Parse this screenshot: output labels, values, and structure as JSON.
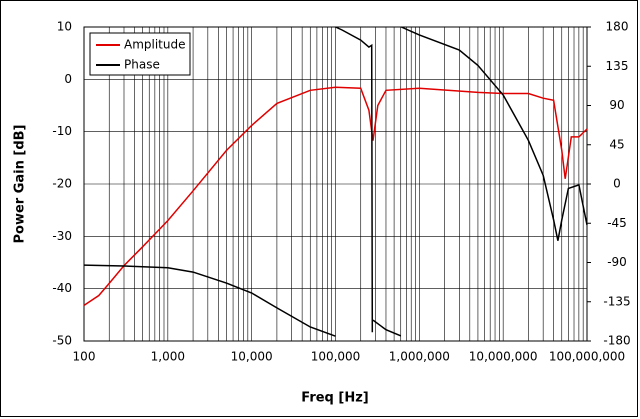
{
  "chart_data": {
    "type": "line",
    "xlabel": "Freq [Hz]",
    "ylabel": "Power Gain [dB]",
    "xscale": "log",
    "grid": true,
    "minor_grid": true,
    "legend": "upper left",
    "xlim": [
      100,
      100000000
    ],
    "xticks": [
      100,
      {
        "value": 1000,
        "label": "1,000"
      },
      {
        "value": 10000,
        "label": "10,000"
      },
      {
        "value": 100000,
        "label": "100,000"
      },
      {
        "value": 1000000,
        "label": "1,000,000"
      },
      {
        "value": 10000000,
        "label": "10,000,000"
      },
      {
        "value": 100000000,
        "label": "100,000,000"
      }
    ],
    "ylim": [
      -50,
      10
    ],
    "yticks": [
      -50,
      -40,
      -30,
      -20,
      -10,
      0,
      10
    ],
    "y2lim": [
      -180,
      180
    ],
    "y2ticks": [
      -180,
      -135,
      -90,
      -45,
      0,
      45,
      90,
      135,
      180
    ],
    "series": [
      {
        "name": "Amplitude",
        "color": "#e00000",
        "x": [
          100,
          150,
          200,
          300,
          500,
          1000,
          2000,
          5000,
          10000,
          20000,
          50000,
          100000,
          200000,
          250000,
          280000,
          320000,
          400000,
          1000000,
          5000000,
          10000000,
          20000000,
          30000000,
          40000000,
          50000000,
          55000000,
          65000000,
          80000000,
          100000000
        ],
        "values": [
          -43.2,
          -41.3,
          -39,
          -35.6,
          -32,
          -27,
          -21.3,
          -13.6,
          -8.8,
          -4.6,
          -2.1,
          -1.5,
          -1.7,
          -5.9,
          -11.7,
          -5,
          -2.1,
          -1.7,
          -2.5,
          -2.7,
          -2.7,
          -3.6,
          -4,
          -13.6,
          -19,
          -11,
          -11,
          -9.5
        ]
      },
      {
        "name": "Phase",
        "color": "#000000",
        "axis": "y2",
        "x": [
          100,
          300,
          1000,
          2000,
          5000,
          10000,
          20000,
          50000,
          100000,
          100001,
          100002,
          120000,
          200000,
          250000,
          270000,
          275000,
          275001,
          280000,
          400000,
          600000,
          600001,
          610000,
          1000000,
          3000000,
          5000000,
          10000000,
          20000000,
          30000000,
          40000000,
          45000000,
          50000000,
          60000000,
          80000000,
          100000000
        ],
        "values": [
          -93,
          -94,
          -96,
          -101,
          -113.6,
          -125,
          -142,
          -164,
          -174.5,
          null,
          180,
          176.6,
          165,
          157,
          159,
          -170,
          null,
          -156,
          -167,
          -174,
          null,
          180,
          171,
          153.6,
          136,
          102,
          50,
          10,
          -41,
          -65,
          -41,
          -5,
          -1,
          -47
        ]
      }
    ]
  }
}
